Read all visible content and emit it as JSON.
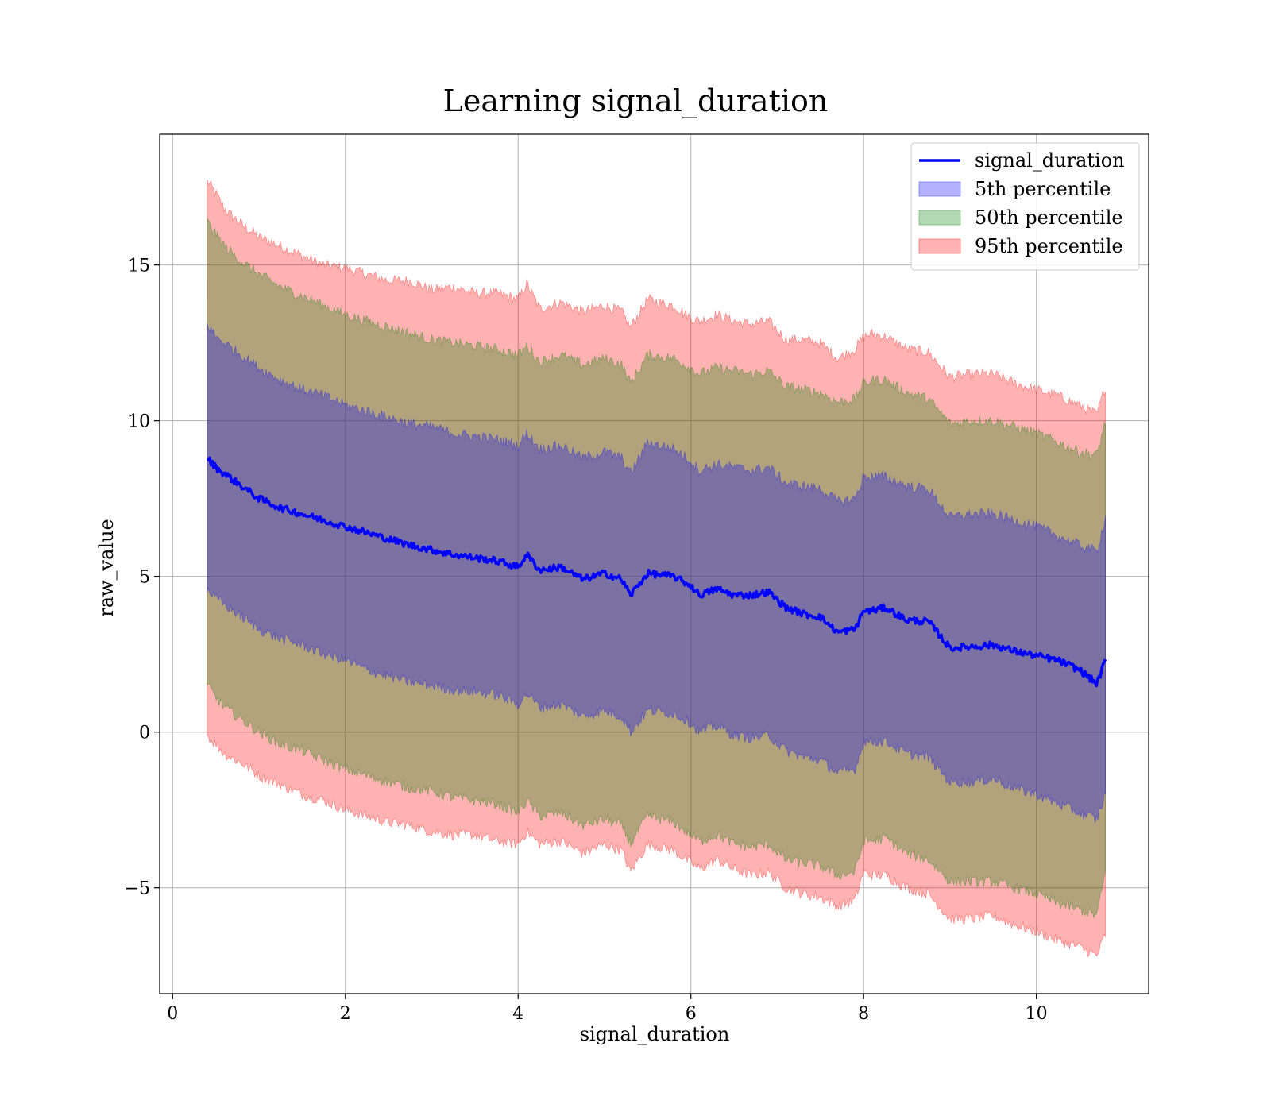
{
  "chart_data": {
    "type": "area",
    "title": "Learning signal_duration",
    "xlabel": "signal_duration",
    "ylabel": "raw_value",
    "xlim": [
      -0.15,
      11.3
    ],
    "ylim": [
      -8.4,
      19.2
    ],
    "xticks": [
      0,
      2,
      4,
      6,
      8,
      10
    ],
    "yticks": [
      -5,
      0,
      5,
      10,
      15
    ],
    "ytick_labels": [
      "−5",
      "0",
      "5",
      "10",
      "15"
    ],
    "grid": true,
    "legend": {
      "position": "top-right",
      "entries": [
        {
          "label": "signal_duration",
          "kind": "line",
          "color": "#0000ff"
        },
        {
          "label": "5th percentile",
          "kind": "fill",
          "color": "#0000ff"
        },
        {
          "label": "50th percentile",
          "kind": "fill",
          "color": "#008000"
        },
        {
          "label": "95th percentile",
          "kind": "fill",
          "color": "#ff0000"
        }
      ]
    },
    "x": [
      0.4,
      0.5,
      0.6,
      0.8,
      1.0,
      1.25,
      1.5,
      1.75,
      2.0,
      2.25,
      2.5,
      2.75,
      3.0,
      3.25,
      3.5,
      3.75,
      4.0,
      4.1,
      4.25,
      4.5,
      4.75,
      5.0,
      5.2,
      5.3,
      5.5,
      5.8,
      6.0,
      6.1,
      6.3,
      6.5,
      6.7,
      6.9,
      7.1,
      7.3,
      7.5,
      7.7,
      7.9,
      8.0,
      8.1,
      8.25,
      8.5,
      8.75,
      9.0,
      9.25,
      9.5,
      9.75,
      10.0,
      10.25,
      10.5,
      10.7,
      10.8
    ],
    "series": [
      {
        "name": "signal_duration",
        "kind": "line",
        "color": "#0000ff",
        "values": [
          8.8,
          8.5,
          8.3,
          7.9,
          7.5,
          7.2,
          7.0,
          6.8,
          6.6,
          6.4,
          6.2,
          6.0,
          5.85,
          5.7,
          5.6,
          5.5,
          5.3,
          5.7,
          5.2,
          5.3,
          4.9,
          5.1,
          4.9,
          4.4,
          5.1,
          5.0,
          4.7,
          4.4,
          4.6,
          4.4,
          4.4,
          4.5,
          4.0,
          3.8,
          3.7,
          3.2,
          3.3,
          3.9,
          3.9,
          4.0,
          3.6,
          3.55,
          2.7,
          2.75,
          2.8,
          2.6,
          2.45,
          2.3,
          2.0,
          1.55,
          2.3
        ]
      },
      {
        "name": "5th percentile",
        "kind": "band",
        "color": "#0000ff",
        "opacity": 0.3,
        "lower": [
          4.6,
          4.3,
          4.1,
          3.7,
          3.3,
          3.0,
          2.8,
          2.5,
          2.3,
          2.0,
          1.8,
          1.6,
          1.5,
          1.35,
          1.3,
          1.2,
          0.9,
          1.25,
          0.8,
          0.9,
          0.5,
          0.7,
          0.5,
          0.0,
          0.7,
          0.6,
          0.3,
          0.0,
          0.2,
          -0.1,
          -0.2,
          -0.1,
          -0.6,
          -0.8,
          -0.9,
          -1.3,
          -1.2,
          -0.3,
          -0.3,
          -0.3,
          -0.7,
          -0.8,
          -1.6,
          -1.6,
          -1.5,
          -1.8,
          -2.0,
          -2.3,
          -2.6,
          -2.8,
          -2.0
        ],
        "upper": [
          13.1,
          12.7,
          12.5,
          12.1,
          11.7,
          11.3,
          11.0,
          10.8,
          10.5,
          10.3,
          10.1,
          9.9,
          9.8,
          9.6,
          9.5,
          9.4,
          9.2,
          9.6,
          9.1,
          9.2,
          8.8,
          9.0,
          8.8,
          8.3,
          9.3,
          9.1,
          8.7,
          8.4,
          8.6,
          8.5,
          8.4,
          8.5,
          8.0,
          7.9,
          7.8,
          7.4,
          7.5,
          8.2,
          8.2,
          8.2,
          7.9,
          7.8,
          6.9,
          7.0,
          7.0,
          6.8,
          6.6,
          6.3,
          6.0,
          5.8,
          6.9
        ]
      },
      {
        "name": "50th percentile",
        "kind": "band",
        "color": "#008000",
        "opacity": 0.3,
        "lower": [
          1.5,
          1.1,
          0.8,
          0.4,
          0.0,
          -0.4,
          -0.6,
          -0.9,
          -1.2,
          -1.4,
          -1.6,
          -1.8,
          -1.9,
          -2.1,
          -2.2,
          -2.3,
          -2.6,
          -2.2,
          -2.7,
          -2.6,
          -3.0,
          -2.8,
          -3.0,
          -3.6,
          -2.7,
          -2.9,
          -3.3,
          -3.5,
          -3.3,
          -3.6,
          -3.7,
          -3.6,
          -4.1,
          -4.2,
          -4.3,
          -4.6,
          -4.5,
          -3.5,
          -3.5,
          -3.4,
          -3.9,
          -4.1,
          -4.8,
          -4.8,
          -4.8,
          -5.0,
          -5.2,
          -5.5,
          -5.7,
          -5.9,
          -4.5
        ],
        "upper": [
          16.4,
          16.0,
          15.6,
          15.1,
          14.7,
          14.3,
          14.0,
          13.7,
          13.4,
          13.2,
          13.0,
          12.8,
          12.6,
          12.5,
          12.4,
          12.3,
          12.1,
          12.4,
          11.9,
          12.1,
          11.8,
          12.0,
          11.8,
          11.2,
          12.1,
          12.0,
          11.7,
          11.5,
          11.7,
          11.6,
          11.5,
          11.6,
          11.1,
          11.0,
          10.9,
          10.6,
          10.7,
          11.2,
          11.3,
          11.3,
          10.9,
          10.7,
          9.9,
          10.0,
          10.0,
          9.8,
          9.6,
          9.3,
          9.0,
          8.9,
          10.0
        ]
      },
      {
        "name": "95th percentile",
        "kind": "band",
        "color": "#ff0000",
        "opacity": 0.3,
        "lower": [
          -0.1,
          -0.4,
          -0.7,
          -1.0,
          -1.4,
          -1.7,
          -2.0,
          -2.2,
          -2.5,
          -2.7,
          -2.9,
          -3.0,
          -3.2,
          -3.3,
          -3.3,
          -3.5,
          -3.6,
          -3.2,
          -3.6,
          -3.5,
          -3.9,
          -3.6,
          -3.8,
          -4.5,
          -3.6,
          -3.8,
          -4.2,
          -4.4,
          -4.1,
          -4.4,
          -4.6,
          -4.5,
          -5.0,
          -5.2,
          -5.3,
          -5.6,
          -5.4,
          -4.5,
          -4.6,
          -4.6,
          -5.0,
          -5.2,
          -6.0,
          -6.0,
          -5.9,
          -6.2,
          -6.4,
          -6.7,
          -6.9,
          -7.2,
          -6.5
        ],
        "upper": [
          17.7,
          17.3,
          16.8,
          16.3,
          15.9,
          15.6,
          15.3,
          15.0,
          14.9,
          14.7,
          14.5,
          14.5,
          14.2,
          14.3,
          14.1,
          14.1,
          13.9,
          14.4,
          13.6,
          13.8,
          13.5,
          13.7,
          13.5,
          13.0,
          13.9,
          13.7,
          13.3,
          13.2,
          13.4,
          13.2,
          13.1,
          13.2,
          12.6,
          12.6,
          12.5,
          12.0,
          12.3,
          12.7,
          12.8,
          12.7,
          12.3,
          12.2,
          11.4,
          11.5,
          11.5,
          11.2,
          11.0,
          10.8,
          10.5,
          10.2,
          11.1
        ]
      }
    ]
  }
}
